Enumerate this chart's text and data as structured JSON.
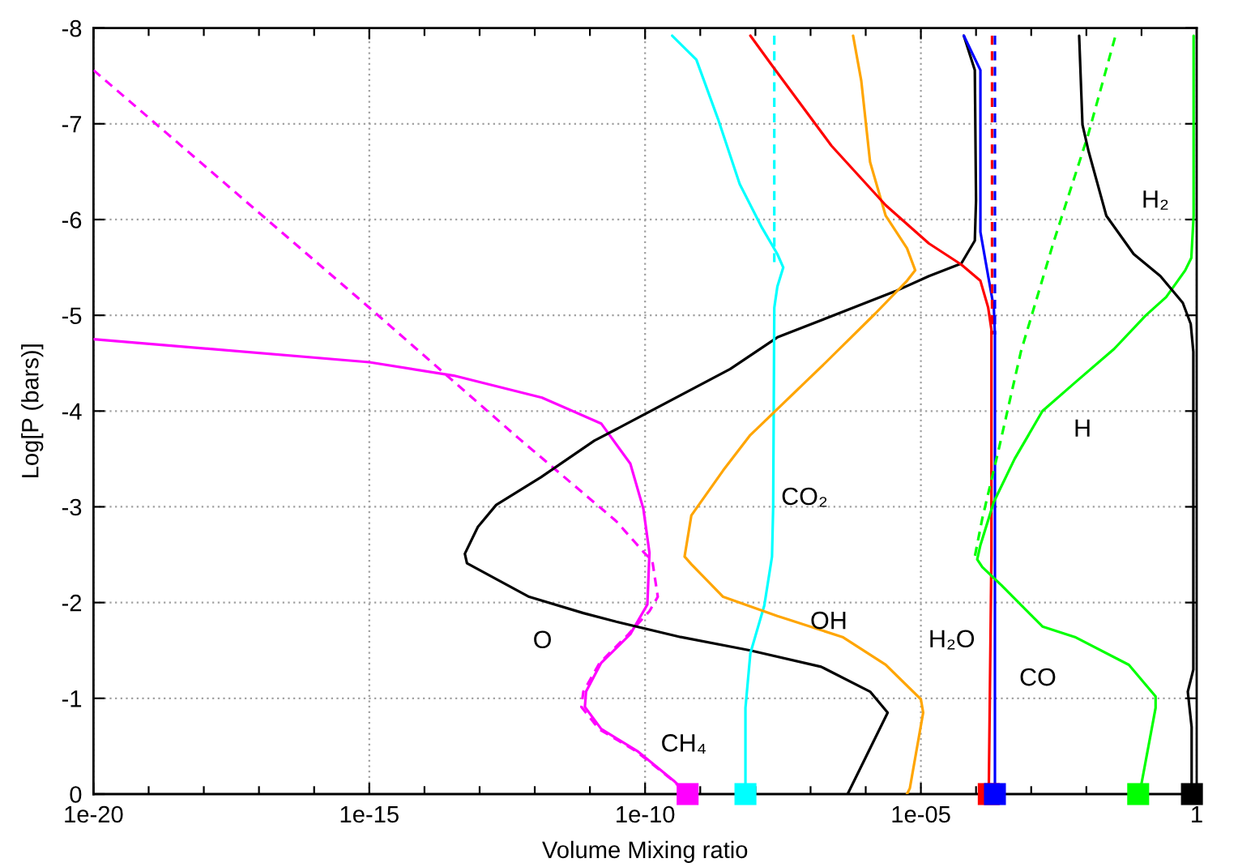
{
  "chart_data": {
    "type": "line",
    "xlabel": "Volume Mixing ratio",
    "ylabel": "Log[P (bars)]",
    "log": "x",
    "grid": true,
    "xlim": [
      1e-20,
      1
    ],
    "ylim": [
      0,
      -8
    ],
    "xticks": [
      {
        "value": 1e-20,
        "label": "1e-20"
      },
      {
        "value": 1e-19,
        "label": null
      },
      {
        "value": 1e-18,
        "label": null
      },
      {
        "value": 1e-17,
        "label": null
      },
      {
        "value": 1e-16,
        "label": null
      },
      {
        "value": 1e-15,
        "label": "1e-15"
      },
      {
        "value": 1e-14,
        "label": null
      },
      {
        "value": 1e-13,
        "label": null
      },
      {
        "value": 1e-12,
        "label": null
      },
      {
        "value": 1e-11,
        "label": null
      },
      {
        "value": 1e-10,
        "label": "1e-10"
      },
      {
        "value": 1e-09,
        "label": null
      },
      {
        "value": 1e-08,
        "label": null
      },
      {
        "value": 1e-07,
        "label": null
      },
      {
        "value": 1e-06,
        "label": null
      },
      {
        "value": 1e-05,
        "label": "1e-05"
      },
      {
        "value": 0.0001,
        "label": null
      },
      {
        "value": 0.001,
        "label": null
      },
      {
        "value": 0.01,
        "label": null
      },
      {
        "value": 0.1,
        "label": null
      },
      1
    ],
    "yticks": [
      0,
      -1,
      -2,
      -3,
      -4,
      -5,
      -6,
      -7,
      -8
    ],
    "series": [
      {
        "name": "CH₄",
        "color": "#ff00ff",
        "x": [
          1e-20,
          1e-15,
          3.4e-14,
          1.35e-12,
          1.6e-11,
          5.4e-11,
          9.3e-11,
          1.2e-10,
          1.1e-10,
          5.4e-11,
          1.6e-11,
          8.5e-12,
          8.1e-12,
          1.6e-11,
          7.2e-11,
          3.3e-10,
          5.9e-10
        ],
        "values": [
          -4.75,
          -4.51,
          -4.37,
          -4.14,
          -3.87,
          -3.45,
          -2.98,
          -2.52,
          -1.98,
          -1.67,
          -1.37,
          -1.07,
          -0.91,
          -0.68,
          -0.45,
          -0.14,
          0
        ]
      },
      {
        "color": "#ff00ff",
        "line_style": "dashed",
        "x": [
          1e-20,
          1e-15,
          5e-13,
          3e-11,
          1e-10,
          1.35e-10,
          1.7e-10,
          1.2e-10,
          5e-11,
          1.5e-11,
          7.6e-12,
          7e-12,
          1.45e-11,
          6.8e-11,
          3.2e-10,
          5.7e-10
        ],
        "values": [
          -7.56,
          -5.08,
          -3.72,
          -2.85,
          -2.51,
          -2.44,
          -2.06,
          -1.91,
          -1.67,
          -1.37,
          -1.07,
          -0.91,
          -0.68,
          -0.45,
          -0.14,
          0
        ]
      },
      {
        "name": "O",
        "color": "#000000",
        "x": [
          4.7e-07,
          2.5e-06,
          1.2e-06,
          1.55e-07,
          8.1e-09,
          4.4e-10,
          3e-11,
          7.6e-12,
          7.9e-13,
          5.9e-14,
          5.4e-14,
          9.3e-14,
          2e-13,
          1.3e-12,
          1.2e-11,
          3e-11,
          3.5e-09,
          2.5e-08,
          3.4e-06,
          1.4e-05,
          5.4e-05,
          9.5e-05,
          0.0001,
          9.5e-05,
          6e-05
        ],
        "values": [
          0,
          -0.85,
          -1.07,
          -1.33,
          -1.5,
          -1.64,
          -1.8,
          -1.89,
          -2.06,
          -2.41,
          -2.51,
          -2.79,
          -3.02,
          -3.31,
          -3.69,
          -3.81,
          -4.44,
          -4.77,
          -5.25,
          -5.41,
          -5.54,
          -5.78,
          -6.2,
          -7.56,
          -7.92
        ]
      },
      {
        "name": "CO₂",
        "color": "#00ffff",
        "x": [
          3.1e-10,
          8.5e-10,
          2.1e-09,
          5.2e-09,
          1.3e-08,
          2.5e-08,
          3.2e-08,
          2.5e-08,
          2.2e-08,
          2.1e-08,
          2e-08,
          1.45e-08,
          8.1e-09,
          6.6e-09,
          6.6e-09
        ],
        "values": [
          -7.92,
          -7.67,
          -7.05,
          -6.37,
          -5.92,
          -5.64,
          -5.5,
          -5.3,
          -5.08,
          -3.0,
          -2.48,
          -1.97,
          -1.47,
          -0.9,
          0
        ]
      },
      {
        "color": "#00ffff",
        "line_style": "dashed",
        "x": [
          2.2e-08,
          2.2e-08
        ],
        "values": [
          -7.92,
          -5.55
        ]
      },
      {
        "name": "OH",
        "color": "#ffa500",
        "x": [
          5.9e-07,
          8.3e-07,
          1.2e-06,
          2.3e-06,
          5.6e-06,
          7.9e-06,
          5.6e-06,
          1.5e-06,
          1.55e-07,
          1.45e-08,
          8.1e-09,
          2.6e-09,
          6.9e-10,
          5.2e-10,
          6.9e-10,
          2.6e-09,
          2.5e-08,
          3.8e-07,
          2.3e-06,
          1e-05,
          1.1e-05,
          6.3e-06,
          5.6e-06
        ],
        "values": [
          -7.92,
          -7.45,
          -6.6,
          -6.04,
          -5.7,
          -5.47,
          -5.36,
          -5.02,
          -4.46,
          -3.89,
          -3.75,
          -3.38,
          -2.91,
          -2.48,
          -2.4,
          -2.06,
          -1.86,
          -1.64,
          -1.35,
          -0.99,
          -0.85,
          -0.06,
          0
        ]
      },
      {
        "name": "H₂O",
        "color": "#ff0000",
        "x": [
          8.1e-09,
          2e-08,
          2.4e-07,
          2.3e-06,
          1.4e-05,
          5.4e-05,
          0.00012,
          0.000166,
          0.00019,
          0.00019,
          0.00017
        ],
        "values": [
          -7.92,
          -7.61,
          -6.77,
          -6.15,
          -5.75,
          -5.53,
          -5.36,
          -5.08,
          -4.85,
          -2.5,
          0
        ]
      },
      {
        "name": "CO",
        "color": "#0000ff",
        "x": [
          6e-05,
          0.00012,
          0.00012,
          0.000166,
          0.00021,
          0.00022,
          0.00022
        ],
        "values": [
          -7.92,
          -7.56,
          -5.87,
          -5.41,
          -5.08,
          -4.8,
          0
        ]
      },
      {
        "color": "#ff0000",
        "line_style": "dashed",
        "x": [
          0.000195,
          0.000195
        ],
        "values": [
          -7.92,
          -4.8
        ]
      },
      {
        "color": "#0000ff",
        "line_style": "dashed",
        "x": [
          0.00022,
          0.00022
        ],
        "values": [
          -7.92,
          -4.8
        ]
      },
      {
        "name": "H",
        "color": "#00ff00",
        "x": [
          0.88,
          0.88,
          0.8,
          0.62,
          0.28,
          0.12,
          0.032,
          0.0063,
          0.0016,
          0.0005,
          0.00021,
          0.00012,
          0.000105,
          0.00013,
          0.00029,
          0.0016,
          0.0062,
          0.059,
          0.18,
          0.18,
          0.1,
          0.087
        ],
        "values": [
          -7.92,
          -6.04,
          -5.6,
          -5.47,
          -5.19,
          -5.0,
          -4.65,
          -4.3,
          -4.0,
          -3.5,
          -3.05,
          -2.6,
          -2.45,
          -2.37,
          -2.18,
          -1.75,
          -1.64,
          -1.35,
          -1.02,
          -0.9,
          -0.11,
          0
        ]
      },
      {
        "color": "#00ff00",
        "line_style": "dashed",
        "x": [
          0.033,
          0.0107,
          0.0025,
          0.00065,
          0.00026,
          0.00013,
          9.5e-05
        ],
        "values": [
          -7.9,
          -6.88,
          -5.75,
          -4.62,
          -3.61,
          -2.88,
          -2.48
        ]
      },
      {
        "name": "H₂",
        "color": "#000000",
        "x": [
          0.0074,
          0.0085,
          0.011,
          0.023,
          0.072,
          0.22,
          0.56,
          0.78,
          0.87,
          0.87,
          0.69,
          0.81,
          0.81
        ],
        "values": [
          -7.92,
          -6.99,
          -6.71,
          -6.04,
          -5.64,
          -5.41,
          -5.13,
          -4.91,
          -4.62,
          -1.3,
          -1.07,
          -0.7,
          0
        ]
      },
      {
        "type": "scatter",
        "marker": "square",
        "x": [
          5.9e-10,
          6.6e-09,
          0.00017,
          0.00022,
          0.087,
          0.82
        ],
        "values": [
          0,
          0,
          0,
          0,
          0,
          0
        ],
        "colors": [
          "#ff00ff",
          "#00ffff",
          "#ff0000",
          "#0000ff",
          "#00ff00",
          "#000000"
        ]
      }
    ]
  }
}
